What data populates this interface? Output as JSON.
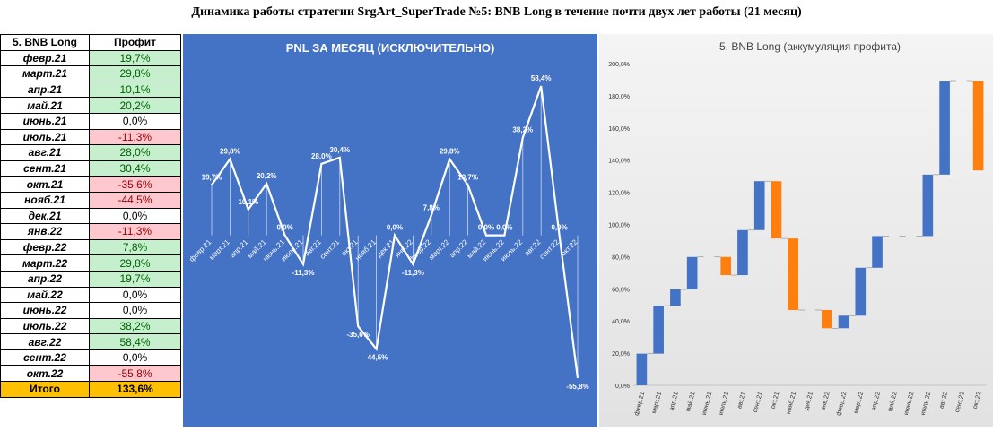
{
  "title": "Динамика работы стратегии SrgArt_SuperTrade №5: BNB Long в течение почти двух лет работы (21 месяц)",
  "table": {
    "header": [
      "5. BNB Long",
      "Профит"
    ],
    "rows": [
      {
        "month": "февр.21",
        "value": "19,7%",
        "kind": "pos"
      },
      {
        "month": "март.21",
        "value": "29,8%",
        "kind": "pos"
      },
      {
        "month": "апр.21",
        "value": "10,1%",
        "kind": "pos"
      },
      {
        "month": "май.21",
        "value": "20,2%",
        "kind": "pos"
      },
      {
        "month": "июнь.21",
        "value": "0,0%",
        "kind": "zero"
      },
      {
        "month": "июль.21",
        "value": "-11,3%",
        "kind": "neg"
      },
      {
        "month": "авг.21",
        "value": "28,0%",
        "kind": "pos"
      },
      {
        "month": "сент.21",
        "value": "30,4%",
        "kind": "pos"
      },
      {
        "month": "окт.21",
        "value": "-35,6%",
        "kind": "neg"
      },
      {
        "month": "нояб.21",
        "value": "-44,5%",
        "kind": "neg"
      },
      {
        "month": "дек.21",
        "value": "0,0%",
        "kind": "zero"
      },
      {
        "month": "янв.22",
        "value": "-11,3%",
        "kind": "neg"
      },
      {
        "month": "февр.22",
        "value": "7,8%",
        "kind": "pos"
      },
      {
        "month": "март.22",
        "value": "29,8%",
        "kind": "pos"
      },
      {
        "month": "апр.22",
        "value": "19,7%",
        "kind": "pos"
      },
      {
        "month": "май.22",
        "value": "0,0%",
        "kind": "zero"
      },
      {
        "month": "июнь.22",
        "value": "0,0%",
        "kind": "zero"
      },
      {
        "month": "июль.22",
        "value": "38,2%",
        "kind": "pos"
      },
      {
        "month": "авг.22",
        "value": "58,4%",
        "kind": "pos"
      },
      {
        "month": "сент.22",
        "value": "0,0%",
        "kind": "zero"
      },
      {
        "month": "окт.22",
        "value": "-55,8%",
        "kind": "neg"
      }
    ],
    "total": {
      "label": "Итого",
      "value": "133,6%"
    }
  },
  "chart_data": [
    {
      "type": "line",
      "title": "PNL ЗА МЕСЯЦ (ИСКЛЮЧИТЕЛЬНО)",
      "categories": [
        "февр.21",
        "март.21",
        "апр.21",
        "май.21",
        "июнь.21",
        "июль.21",
        "авг.21",
        "сент.21",
        "окт.21",
        "нояб.21",
        "дек.21",
        "янв.22",
        "февр.22",
        "март.22",
        "апр.22",
        "май.22",
        "июнь.22",
        "июль.22",
        "авг.22",
        "сент.22",
        "окт.22"
      ],
      "values": [
        19.7,
        29.8,
        10.1,
        20.2,
        0.0,
        -11.3,
        28.0,
        30.4,
        -35.6,
        -44.5,
        0.0,
        -11.3,
        7.8,
        29.8,
        19.7,
        0.0,
        0.0,
        38.2,
        58.4,
        0.0,
        -55.8
      ],
      "labels": [
        "19,7%",
        "29,8%",
        "10,1%",
        "20,2%",
        "0,0%",
        "-11,3%",
        "28,0%",
        "30,4%",
        "-35,6%",
        "-44,5%",
        "0,0%",
        "-11,3%",
        "7,8%",
        "29,8%",
        "19,7%",
        "0,0%",
        "0,0%",
        "38,2%",
        "58,4%",
        "0,0%",
        "-55,8%"
      ],
      "ylim": [
        -65,
        70
      ],
      "background": "#4472c4",
      "line_color": "#ffffff"
    },
    {
      "type": "waterfall",
      "title": "5. BNB Long (аккумуляция профита)",
      "categories": [
        "февр.21",
        "март.21",
        "апр.21",
        "май.21",
        "июнь.21",
        "июль.21",
        "авг.21",
        "сент.21",
        "окт.21",
        "нояб.21",
        "дек.21",
        "янв.22",
        "февр.22",
        "март.22",
        "апр.22",
        "май.22",
        "июнь.22",
        "июль.22",
        "авг.22",
        "сент.22",
        "окт.22"
      ],
      "values": [
        19.7,
        29.8,
        10.1,
        20.2,
        0.0,
        -11.3,
        28.0,
        30.4,
        -35.6,
        -44.5,
        0.0,
        -11.3,
        7.8,
        29.8,
        19.7,
        0.0,
        0.0,
        38.2,
        58.4,
        0.0,
        -55.8
      ],
      "yticks": [
        "0,0%",
        "20,0%",
        "40,0%",
        "60,0%",
        "80,0%",
        "100,0%",
        "120,0%",
        "140,0%",
        "160,0%",
        "180,0%",
        "200,0%"
      ],
      "ylim": [
        0,
        200
      ],
      "colors": {
        "increase": "#4472c4",
        "decrease": "#ff7f0e"
      }
    }
  ]
}
